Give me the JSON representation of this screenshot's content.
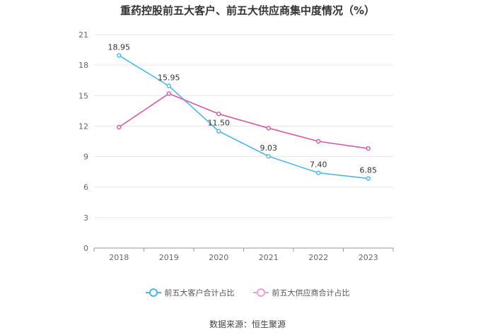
{
  "chart_data": {
    "type": "line",
    "title": "重药控股前五大客户、前五大供应商集中度情况（%）",
    "categories": [
      "2018",
      "2019",
      "2020",
      "2021",
      "2022",
      "2023"
    ],
    "series": [
      {
        "name": "前五大客户合计占比",
        "values": [
          18.95,
          15.95,
          11.5,
          9.03,
          7.4,
          6.85
        ],
        "labels": [
          "18.95",
          "15.95",
          "11.50",
          "9.03",
          "7.40",
          "6.85"
        ],
        "color": "#4ab8ea"
      },
      {
        "name": "前五大供应商合计占比",
        "values": [
          11.9,
          15.2,
          13.2,
          11.8,
          10.5,
          9.8
        ],
        "color": "#d65aa8"
      }
    ],
    "ylim": [
      0,
      21
    ],
    "yticks": [
      "0",
      "3",
      "6",
      "9",
      "12",
      "15",
      "18",
      "21"
    ],
    "grid": true,
    "legend_position": "bottom"
  },
  "source": "数据来源：恒生聚源"
}
